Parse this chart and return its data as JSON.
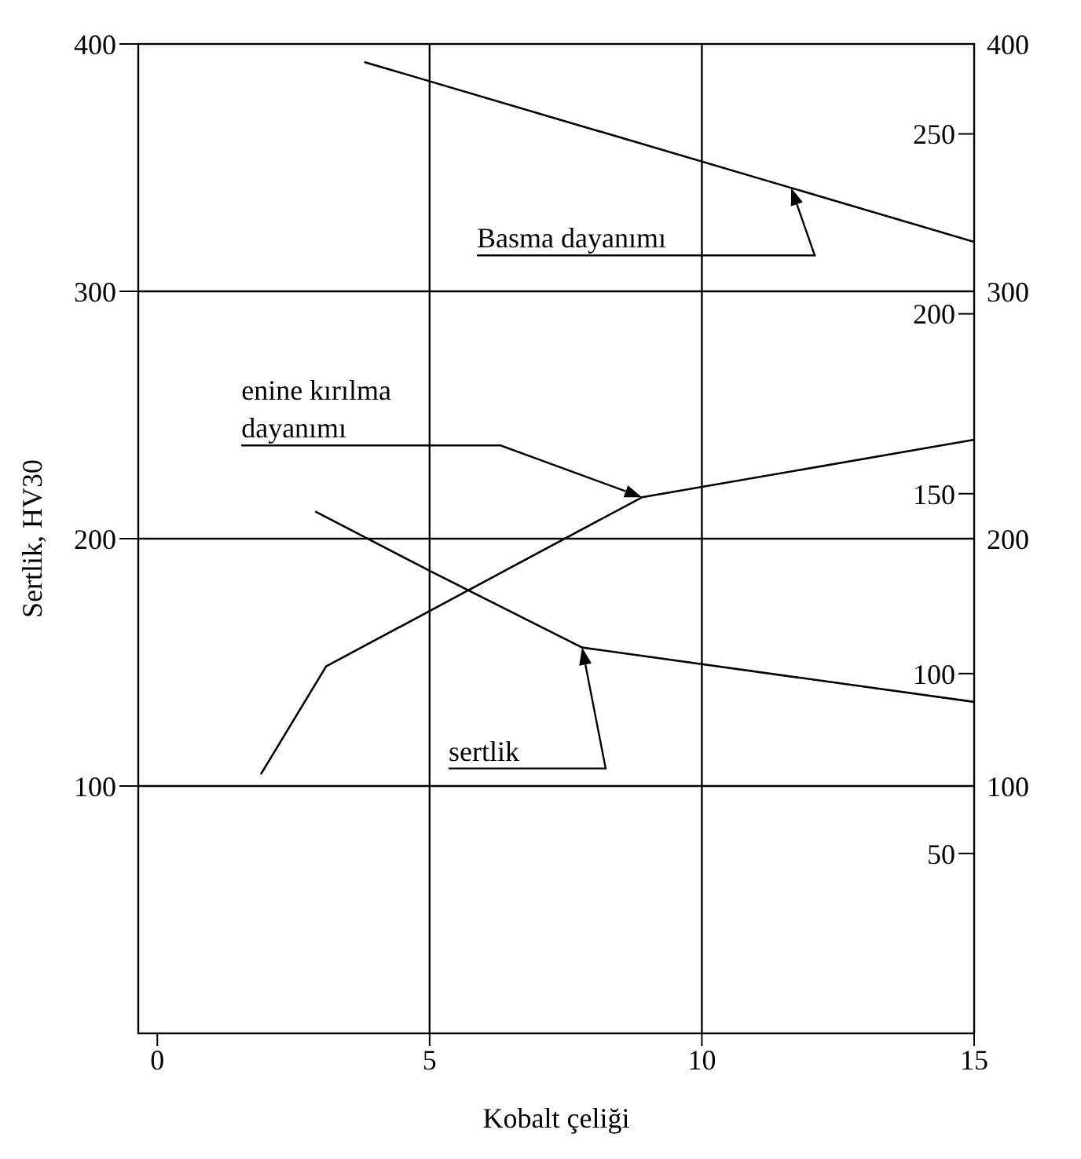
{
  "chart_data": {
    "type": "line",
    "xlabel": "Kobalt çeliği",
    "ylabel": "Sertlik, HV30",
    "xlim": [
      -0.35,
      15
    ],
    "xticks": [
      0,
      5,
      10,
      15
    ],
    "ylim": [
      0,
      400
    ],
    "yticks": [
      100,
      200,
      300,
      400
    ],
    "y2lim": [
      0,
      400
    ],
    "y2ticks": [
      100,
      200,
      300,
      400
    ],
    "y3lim": [
      0,
      275
    ],
    "y3ticks": [
      50,
      100,
      150,
      200,
      250
    ],
    "grid": true,
    "legend": false,
    "marker": "none",
    "line_style": "solid",
    "series": [
      {
        "name": "Basma dayanımı",
        "color": "#000000",
        "axis": "y3",
        "x": [
          3.8,
          15
        ],
        "values": [
          270,
          220
        ]
      },
      {
        "name": "enine kırılma dayanımı",
        "color": "#000000",
        "axis": "y3",
        "x": [
          1.9,
          3.1,
          8.9,
          15
        ],
        "values": [
          72,
          102,
          149,
          165
        ]
      },
      {
        "name": "sertlik",
        "color": "#000000",
        "axis": "y",
        "x": [
          2.9,
          5,
          7.8,
          15
        ],
        "values": [
          211,
          187,
          156,
          134
        ]
      }
    ]
  }
}
